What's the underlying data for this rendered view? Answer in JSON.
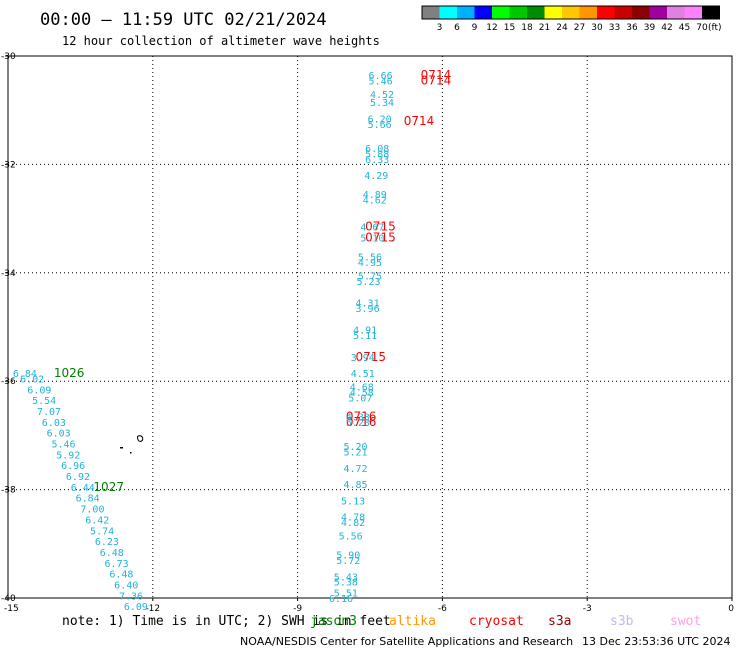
{
  "header": {
    "title": "00:00 – 11:59 UTC 02/21/2024",
    "subtitle": "12 hour collection of altimeter wave heights"
  },
  "colorbar": {
    "labels": [
      "3",
      "6",
      "9",
      "12",
      "15",
      "18",
      "21",
      "24",
      "27",
      "30",
      "33",
      "36",
      "39",
      "42",
      "45",
      "70"
    ],
    "unit": "(ft)",
    "colors": [
      "#808080",
      "#00ffff",
      "#00b0ff",
      "#0000ff",
      "#00ff00",
      "#00c800",
      "#008c00",
      "#ffff00",
      "#ffc800",
      "#ff9600",
      "#ff0000",
      "#c80000",
      "#8c0000",
      "#a000a0",
      "#e080e0",
      "#ff80ff",
      "#000000"
    ]
  },
  "footer": {
    "note": "note:  1) Time is in UTC; 2) SWH is in feet",
    "satellites": [
      {
        "name": "jason3",
        "color": "#008000"
      },
      {
        "name": "altika",
        "color": "#ff9900"
      },
      {
        "name": "cryosat",
        "color": "#ff0000"
      },
      {
        "name": "s3a",
        "color": "#a00000"
      },
      {
        "name": "s3b",
        "color": "#c8b4f0"
      },
      {
        "name": "swot",
        "color": "#ffa0e6"
      }
    ],
    "credit": "NOAA/NESDIS Center for Satellite Applications and Research",
    "generated": "13 Dec 23:53:36 UTC 2024"
  },
  "chart_data": {
    "type": "scatter",
    "title": "00:00 – 11:59 UTC 02/21/2024",
    "subtitle": "12 hour collection of altimeter wave heights",
    "xlabel": "",
    "ylabel": "",
    "xlim": [
      -15,
      0
    ],
    "ylim": [
      -40,
      -30
    ],
    "xticks": [
      -15,
      -12,
      -9,
      -6,
      -3,
      0
    ],
    "yticks": [
      -30,
      -32,
      -34,
      -36,
      -38,
      -40
    ],
    "xtick_labels": [
      "-15",
      "-12",
      "-9",
      "-6",
      "-3",
      "0"
    ],
    "ytick_labels": [
      "-30",
      "-32",
      "-34",
      "-36",
      "-38",
      "-40"
    ],
    "grid": true,
    "units": "ft",
    "series": [
      {
        "name": "cryosat",
        "color": "#ff0000",
        "points": [
          {
            "lon": -6.45,
            "lat": -30.35,
            "label": "0714"
          },
          {
            "lon": -6.45,
            "lat": -30.45,
            "label": "0714"
          },
          {
            "lon": -6.8,
            "lat": -31.2,
            "label": "0714"
          },
          {
            "lon": -7.6,
            "lat": -33.15,
            "label": "0715"
          },
          {
            "lon": -7.6,
            "lat": -33.35,
            "label": "0715"
          },
          {
            "lon": -7.8,
            "lat": -35.55,
            "label": "0715"
          },
          {
            "lon": -8.0,
            "lat": -36.65,
            "label": "0716"
          },
          {
            "lon": -8.0,
            "lat": -36.75,
            "label": "0716"
          },
          {
            "lon": -7.53,
            "lat": -30.35,
            "label": "6.66"
          },
          {
            "lon": -7.53,
            "lat": -30.45,
            "label": "5.46"
          },
          {
            "lon": -7.5,
            "lat": -30.7,
            "label": "4.52"
          },
          {
            "lon": -7.5,
            "lat": -30.85,
            "label": "5.34"
          },
          {
            "lon": -7.55,
            "lat": -31.15,
            "label": "6.20"
          },
          {
            "lon": -7.55,
            "lat": -31.25,
            "label": "5.66"
          },
          {
            "lon": -7.6,
            "lat": -31.7,
            "label": "6.08"
          },
          {
            "lon": -7.6,
            "lat": -31.8,
            "label": "5.88"
          },
          {
            "lon": -7.6,
            "lat": -31.9,
            "label": "6.33"
          },
          {
            "lon": -7.62,
            "lat": -32.2,
            "label": "4.29"
          },
          {
            "lon": -7.65,
            "lat": -32.55,
            "label": "4.89"
          },
          {
            "lon": -7.65,
            "lat": -32.65,
            "label": "4.62"
          },
          {
            "lon": -7.7,
            "lat": -33.15,
            "label": "4.67"
          },
          {
            "lon": -7.7,
            "lat": -33.35,
            "label": "5.10"
          },
          {
            "lon": -7.75,
            "lat": -33.7,
            "label": "5.56"
          },
          {
            "lon": -7.75,
            "lat": -33.8,
            "label": "4.95"
          },
          {
            "lon": -7.75,
            "lat": -34.05,
            "label": "5.75"
          },
          {
            "lon": -7.78,
            "lat": -34.15,
            "label": "5.23"
          },
          {
            "lon": -7.8,
            "lat": -34.55,
            "label": "4.31"
          },
          {
            "lon": -7.8,
            "lat": -34.65,
            "label": "3.96"
          },
          {
            "lon": -7.85,
            "lat": -35.05,
            "label": "4.91"
          },
          {
            "lon": -7.85,
            "lat": -35.15,
            "label": "5.11"
          },
          {
            "lon": -7.9,
            "lat": -35.55,
            "label": "3.94"
          },
          {
            "lon": -7.9,
            "lat": -35.85,
            "label": "4.51"
          },
          {
            "lon": -7.92,
            "lat": -36.1,
            "label": "4.68"
          },
          {
            "lon": -7.92,
            "lat": -36.2,
            "label": "4.58"
          },
          {
            "lon": -7.95,
            "lat": -36.3,
            "label": "5.07"
          },
          {
            "lon": -8.0,
            "lat": -36.65,
            "label": "4.33"
          },
          {
            "lon": -8.0,
            "lat": -36.75,
            "label": "5.23"
          },
          {
            "lon": -8.05,
            "lat": -37.2,
            "label": "5.20"
          },
          {
            "lon": -8.05,
            "lat": -37.3,
            "label": "5.21"
          },
          {
            "lon": -8.05,
            "lat": -37.6,
            "label": "4.72"
          },
          {
            "lon": -8.05,
            "lat": -37.9,
            "label": "4.85"
          },
          {
            "lon": -8.1,
            "lat": -38.2,
            "label": "5.13"
          },
          {
            "lon": -8.1,
            "lat": -38.5,
            "label": "4.78"
          },
          {
            "lon": -8.1,
            "lat": -38.6,
            "label": "4.82"
          },
          {
            "lon": -8.15,
            "lat": -38.85,
            "label": "5.56"
          },
          {
            "lon": -8.2,
            "lat": -39.2,
            "label": "5.90"
          },
          {
            "lon": -8.2,
            "lat": -39.3,
            "label": "5.72"
          },
          {
            "lon": -8.25,
            "lat": -39.6,
            "label": "5.43"
          },
          {
            "lon": -8.25,
            "lat": -39.7,
            "label": "5.38"
          },
          {
            "lon": -8.25,
            "lat": -39.9,
            "label": "5.51"
          },
          {
            "lon": -8.35,
            "lat": -40.0,
            "label": "6.16"
          }
        ]
      },
      {
        "name": "jason3",
        "color": "#008000",
        "points": [
          {
            "lon": -14.05,
            "lat": -35.85,
            "label": "1026"
          },
          {
            "lon": -13.23,
            "lat": -37.95,
            "label": "1027"
          },
          {
            "lon": -14.9,
            "lat": -35.85,
            "label": "6.84"
          },
          {
            "lon": -14.75,
            "lat": -35.95,
            "label": "6.02"
          },
          {
            "lon": -14.6,
            "lat": -36.15,
            "label": "6.09"
          },
          {
            "lon": -14.5,
            "lat": -36.35,
            "label": "5.54"
          },
          {
            "lon": -14.4,
            "lat": -36.55,
            "label": "7.07"
          },
          {
            "lon": -14.3,
            "lat": -36.75,
            "label": "6.03"
          },
          {
            "lon": -14.2,
            "lat": -36.95,
            "label": "6.03"
          },
          {
            "lon": -14.1,
            "lat": -37.15,
            "label": "5.46"
          },
          {
            "lon": -14.0,
            "lat": -37.35,
            "label": "5.92"
          },
          {
            "lon": -13.9,
            "lat": -37.55,
            "label": "6.96"
          },
          {
            "lon": -13.8,
            "lat": -37.75,
            "label": "6.92"
          },
          {
            "lon": -13.7,
            "lat": -37.95,
            "label": "6.44"
          },
          {
            "lon": -13.6,
            "lat": -38.15,
            "label": "6.84"
          },
          {
            "lon": -13.5,
            "lat": -38.35,
            "label": "7.00"
          },
          {
            "lon": -13.4,
            "lat": -38.55,
            "label": "6.42"
          },
          {
            "lon": -13.3,
            "lat": -38.75,
            "label": "5.74"
          },
          {
            "lon": -13.2,
            "lat": -38.95,
            "label": "6.23"
          },
          {
            "lon": -13.1,
            "lat": -39.15,
            "label": "6.48"
          },
          {
            "lon": -13.0,
            "lat": -39.35,
            "label": "6.73"
          },
          {
            "lon": -12.9,
            "lat": -39.55,
            "label": "6.48"
          },
          {
            "lon": -12.8,
            "lat": -39.75,
            "label": "6.40"
          },
          {
            "lon": -12.7,
            "lat": -39.95,
            "label": "7.36"
          },
          {
            "lon": -12.6,
            "lat": -40.15,
            "label": "6.09"
          }
        ]
      }
    ]
  }
}
